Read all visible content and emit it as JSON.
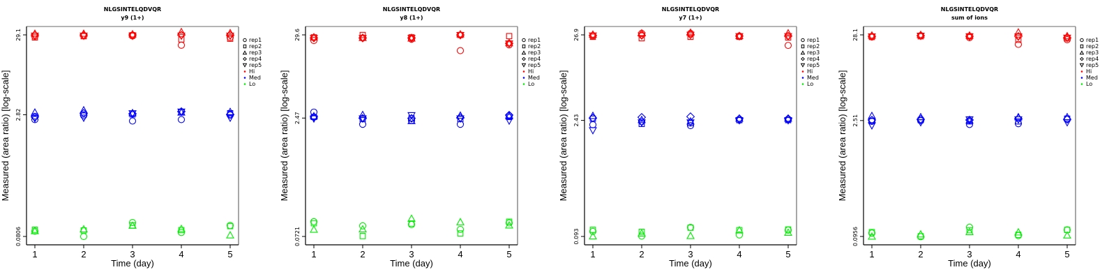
{
  "chart_data": [
    {
      "type": "scatter",
      "title": "NLGSINTELQDVQR",
      "subtitle": "y9 (1+)",
      "xlabel": "Time (day)",
      "ylabel": "Measured (area ratio) [log-scale]",
      "yscale": "log",
      "x_ticks": [
        "1",
        "2",
        "3",
        "4",
        "5"
      ],
      "y_ticks": [
        {
          "label": "29.1",
          "value": 29.1
        },
        {
          "label": "2.82",
          "value": 2.82
        },
        {
          "label": "0.0806",
          "value": 0.0806
        }
      ],
      "legend_position": "right",
      "series": [
        {
          "name": "Hi",
          "rep": "rep1",
          "values": [
            28.0,
            28.5,
            28.2,
            21.5,
            27.0
          ]
        },
        {
          "name": "Hi",
          "rep": "rep2",
          "values": [
            27.0,
            28.0,
            28.8,
            25.5,
            26.0
          ]
        },
        {
          "name": "Hi",
          "rep": "rep3",
          "values": [
            30.0,
            30.0,
            29.5,
            31.5,
            30.5
          ]
        },
        {
          "name": "Hi",
          "rep": "rep4",
          "values": [
            29.0,
            29.0,
            29.0,
            29.0,
            29.0
          ]
        },
        {
          "name": "Hi",
          "rep": "rep5",
          "values": [
            28.5,
            28.5,
            28.5,
            28.5,
            28.5
          ]
        },
        {
          "name": "Med",
          "rep": "rep1",
          "values": [
            2.45,
            2.75,
            2.35,
            2.45,
            2.8
          ]
        },
        {
          "name": "Med",
          "rep": "rep2",
          "values": [
            2.7,
            2.85,
            2.85,
            3.05,
            2.95
          ]
        },
        {
          "name": "Med",
          "rep": "rep3",
          "values": [
            3.0,
            3.2,
            2.95,
            3.0,
            3.05
          ]
        },
        {
          "name": "Med",
          "rep": "rep4",
          "values": [
            2.65,
            2.95,
            2.9,
            3.1,
            2.85
          ]
        },
        {
          "name": "Med",
          "rep": "rep5",
          "values": [
            2.55,
            2.6,
            2.95,
            3.1,
            2.6
          ]
        },
        {
          "name": "Lo",
          "rep": "rep1",
          "values": [
            0.094,
            0.0805,
            0.121,
            0.0905,
            0.111
          ]
        },
        {
          "name": "Lo",
          "rep": "rep2",
          "values": [
            0.098,
            0.096,
            0.111,
            0.097,
            0.109
          ]
        },
        {
          "name": "Lo",
          "rep": "rep3",
          "values": [
            0.094,
            0.099,
            0.11,
            0.1,
            0.083
          ]
        }
      ]
    },
    {
      "type": "scatter",
      "title": "NLGSINTELQDVQR",
      "subtitle": "y8 (1+)",
      "xlabel": "Time (day)",
      "ylabel": "Measured (area ratio) [log-scale]",
      "yscale": "log",
      "x_ticks": [
        "1",
        "2",
        "3",
        "4",
        "5"
      ],
      "y_ticks": [
        {
          "label": "29.6",
          "value": 29.6
        },
        {
          "label": "2.47",
          "value": 2.47
        },
        {
          "label": "0.0721",
          "value": 0.0721
        }
      ],
      "legend_position": "right",
      "series": [
        {
          "name": "Hi",
          "rep": "rep1",
          "values": [
            25.0,
            27.0,
            26.0,
            18.5,
            22.0
          ]
        },
        {
          "name": "Hi",
          "rep": "rep2",
          "values": [
            27.5,
            29.5,
            27.5,
            29.5,
            28.5
          ]
        },
        {
          "name": "Hi",
          "rep": "rep3",
          "values": [
            27.5,
            27.0,
            26.5,
            30.0,
            23.0
          ]
        },
        {
          "name": "Hi",
          "rep": "rep4",
          "values": [
            27.0,
            27.0,
            27.0,
            29.5,
            23.0
          ]
        },
        {
          "name": "Hi",
          "rep": "rep5",
          "values": [
            27.0,
            27.0,
            27.0,
            29.5,
            23.0
          ]
        },
        {
          "name": "Med",
          "rep": "rep1",
          "values": [
            2.95,
            2.05,
            2.3,
            2.05,
            2.65
          ]
        },
        {
          "name": "Med",
          "rep": "rep2",
          "values": [
            2.55,
            2.4,
            2.45,
            2.4,
            2.55
          ]
        },
        {
          "name": "Med",
          "rep": "rep3",
          "values": [
            2.6,
            2.7,
            2.25,
            2.65,
            2.6
          ]
        },
        {
          "name": "Med",
          "rep": "rep4",
          "values": [
            2.55,
            2.45,
            2.45,
            2.5,
            2.7
          ]
        },
        {
          "name": "Med",
          "rep": "rep5",
          "values": [
            2.45,
            2.45,
            2.7,
            2.45,
            2.3
          ]
        },
        {
          "name": "Lo",
          "rep": "rep1",
          "values": [
            0.112,
            0.099,
            0.103,
            0.089,
            0.108
          ]
        },
        {
          "name": "Lo",
          "rep": "rep2",
          "values": [
            0.107,
            0.073,
            0.106,
            0.079,
            0.112
          ]
        },
        {
          "name": "Lo",
          "rep": "rep3",
          "values": [
            0.088,
            0.089,
            0.122,
            0.11,
            0.1
          ]
        }
      ]
    },
    {
      "type": "scatter",
      "title": "NLGSINTELQDVQR",
      "subtitle": "y7 (1+)",
      "xlabel": "Time (day)",
      "ylabel": "Measured (area ratio) [log-scale]",
      "yscale": "log",
      "x_ticks": [
        "1",
        "2",
        "3",
        "4",
        "5"
      ],
      "y_ticks": [
        {
          "label": "26.9",
          "value": 26.9
        },
        {
          "label": "2.43",
          "value": 2.43
        },
        {
          "label": "0.093",
          "value": 0.093
        }
      ],
      "legend_position": "right",
      "series": [
        {
          "name": "Hi",
          "rep": "rep1",
          "values": [
            26.0,
            28.0,
            28.0,
            26.0,
            20.0
          ]
        },
        {
          "name": "Hi",
          "rep": "rep2",
          "values": [
            25.5,
            24.5,
            25.5,
            25.5,
            25.0
          ]
        },
        {
          "name": "Hi",
          "rep": "rep3",
          "values": [
            27.0,
            28.0,
            28.5,
            26.0,
            28.0
          ]
        },
        {
          "name": "Hi",
          "rep": "rep4",
          "values": [
            26.5,
            26.5,
            27.0,
            26.0,
            26.0
          ]
        },
        {
          "name": "Hi",
          "rep": "rep5",
          "values": [
            26.5,
            26.5,
            27.0,
            26.0,
            26.0
          ]
        },
        {
          "name": "Med",
          "rep": "rep1",
          "values": [
            2.15,
            2.35,
            2.1,
            2.45,
            2.5
          ]
        },
        {
          "name": "Med",
          "rep": "rep2",
          "values": [
            2.55,
            2.2,
            2.25,
            2.45,
            2.45
          ]
        },
        {
          "name": "Med",
          "rep": "rep3",
          "values": [
            2.75,
            2.45,
            2.35,
            2.55,
            2.55
          ]
        },
        {
          "name": "Med",
          "rep": "rep4",
          "values": [
            2.6,
            2.65,
            2.7,
            2.55,
            2.55
          ]
        },
        {
          "name": "Med",
          "rep": "rep5",
          "values": [
            1.85,
            2.3,
            2.3,
            2.45,
            2.45
          ]
        },
        {
          "name": "Lo",
          "rep": "rep1",
          "values": [
            0.107,
            0.094,
            0.12,
            0.097,
            0.111
          ]
        },
        {
          "name": "Lo",
          "rep": "rep2",
          "values": [
            0.112,
            0.106,
            0.119,
            0.111,
            0.113
          ]
        },
        {
          "name": "Lo",
          "rep": "rep3",
          "values": [
            0.093,
            0.101,
            0.094,
            0.11,
            0.103
          ]
        }
      ]
    },
    {
      "type": "scatter",
      "title": "NLGSINTELQDVQR",
      "subtitle": "sum of ions",
      "xlabel": "Time (day)",
      "ylabel": "Measured (area ratio) [log-scale]",
      "yscale": "log",
      "x_ticks": [
        "1",
        "2",
        "3",
        "4",
        "5"
      ],
      "y_ticks": [
        {
          "label": "28.1",
          "value": 28.1
        },
        {
          "label": "2.51",
          "value": 2.51
        },
        {
          "label": "0.0956",
          "value": 0.0956
        }
      ],
      "legend_position": "right",
      "series": [
        {
          "name": "Hi",
          "rep": "rep1",
          "values": [
            26.5,
            27.5,
            26.0,
            21.5,
            24.5
          ]
        },
        {
          "name": "Hi",
          "rep": "rep2",
          "values": [
            26.5,
            27.0,
            27.0,
            24.5,
            25.5
          ]
        },
        {
          "name": "Hi",
          "rep": "rep3",
          "values": [
            27.5,
            28.0,
            27.5,
            30.0,
            27.0
          ]
        },
        {
          "name": "Hi",
          "rep": "rep4",
          "values": [
            27.0,
            27.5,
            27.0,
            27.0,
            26.0
          ]
        },
        {
          "name": "Hi",
          "rep": "rep5",
          "values": [
            27.0,
            27.5,
            27.0,
            27.0,
            26.0
          ]
        },
        {
          "name": "Med",
          "rep": "rep1",
          "values": [
            2.45,
            2.5,
            2.25,
            2.3,
            2.6
          ]
        },
        {
          "name": "Med",
          "rep": "rep2",
          "values": [
            2.5,
            2.55,
            2.45,
            2.45,
            2.65
          ]
        },
        {
          "name": "Med",
          "rep": "rep3",
          "values": [
            2.85,
            2.75,
            2.5,
            2.75,
            2.75
          ]
        },
        {
          "name": "Med",
          "rep": "rep4",
          "values": [
            2.55,
            2.6,
            2.55,
            2.65,
            2.6
          ]
        },
        {
          "name": "Med",
          "rep": "rep5",
          "values": [
            2.2,
            2.4,
            2.6,
            2.6,
            2.4
          ]
        },
        {
          "name": "Lo",
          "rep": "rep1",
          "values": [
            0.105,
            0.095,
            0.124,
            0.098,
            0.115
          ]
        },
        {
          "name": "Lo",
          "rep": "rep2",
          "values": [
            0.108,
            0.096,
            0.114,
            0.1,
            0.115
          ]
        },
        {
          "name": "Lo",
          "rep": "rep3",
          "values": [
            0.095,
            0.101,
            0.108,
            0.107,
            0.098
          ]
        }
      ]
    }
  ],
  "legend": {
    "items": [
      {
        "label": "rep1",
        "symbol": "circle",
        "color": "#000000"
      },
      {
        "label": "rep2",
        "symbol": "square",
        "color": "#000000"
      },
      {
        "label": "rep3",
        "symbol": "triangle-up",
        "color": "#000000"
      },
      {
        "label": "rep4",
        "symbol": "diamond",
        "color": "#000000"
      },
      {
        "label": "rep5",
        "symbol": "triangle-down",
        "color": "#000000"
      },
      {
        "label": "Hi",
        "symbol": "dot",
        "color": "#ff0000"
      },
      {
        "label": "Med",
        "symbol": "dot",
        "color": "#0000ff"
      },
      {
        "label": "Lo",
        "symbol": "dot",
        "color": "#00ee00"
      }
    ]
  },
  "colors": {
    "Hi": "#ff0000",
    "Med": "#0000ff",
    "Lo": "#00ee00"
  },
  "rep_symbols": {
    "rep1": "circle",
    "rep2": "square",
    "rep3": "triangle-up",
    "rep4": "diamond",
    "rep5": "triangle-down"
  }
}
